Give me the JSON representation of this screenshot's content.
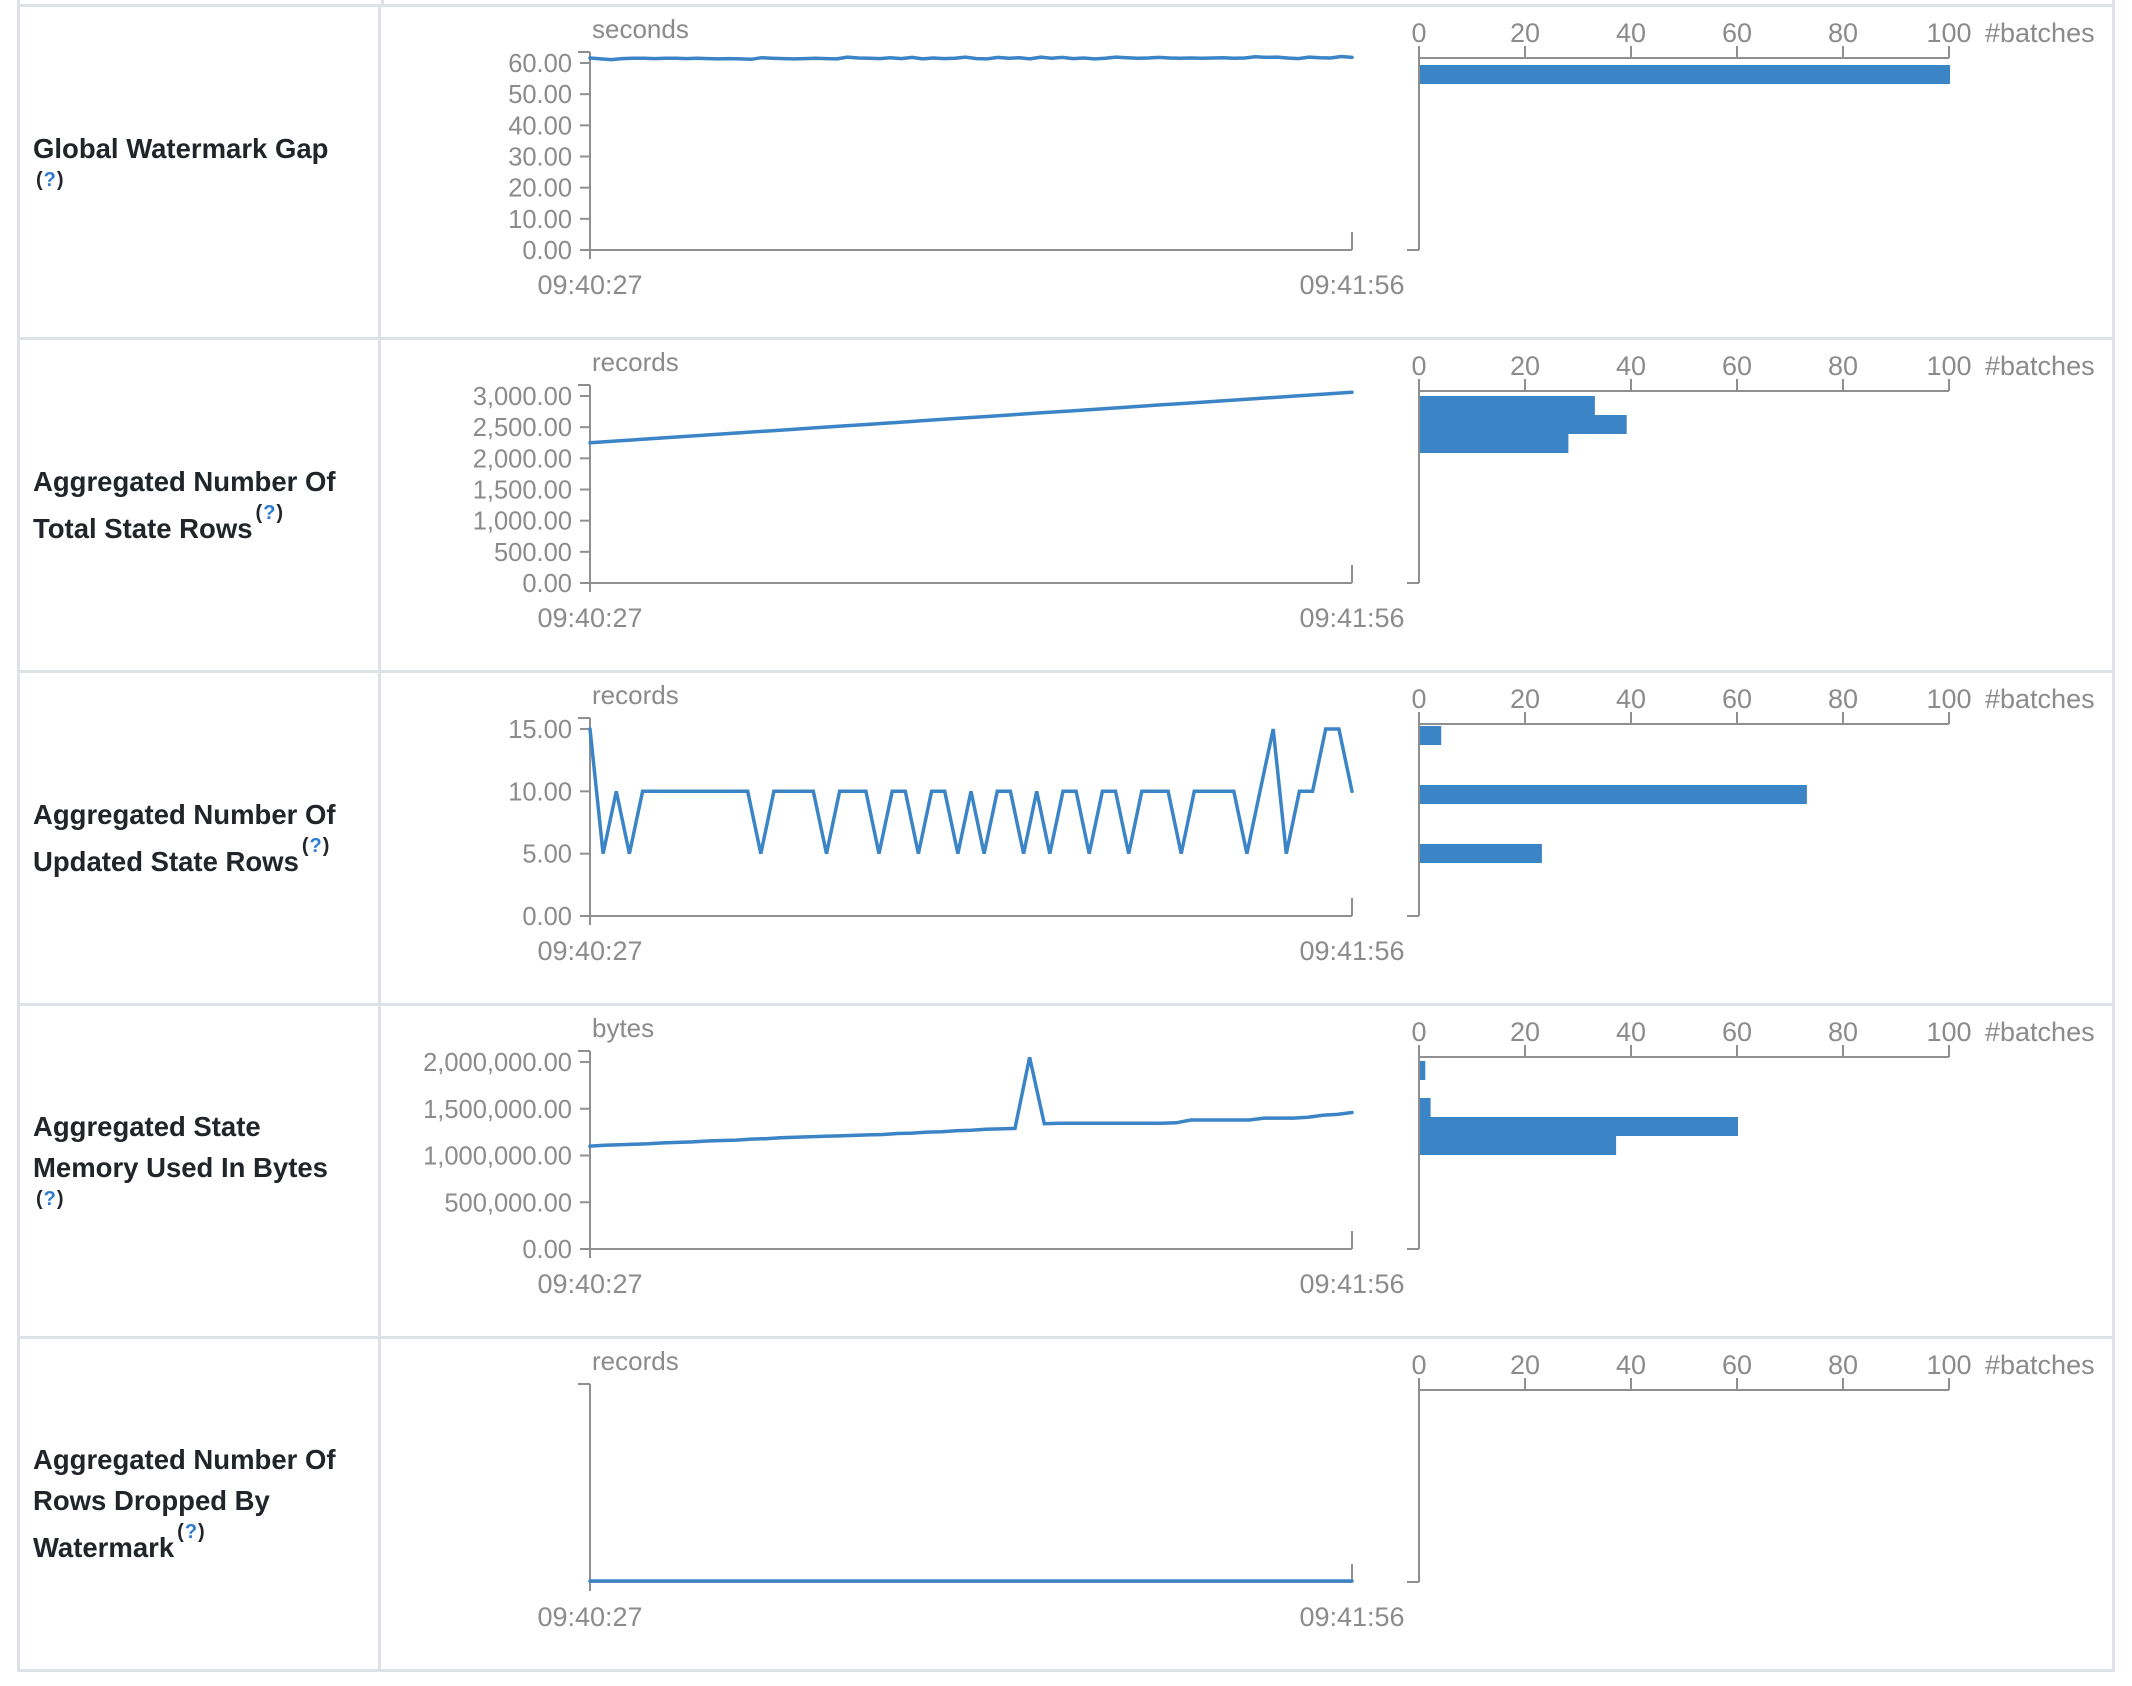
{
  "colors": {
    "accent_blue": "#3b84c6",
    "axis_gray": "#8f8f8f",
    "text_gray": "#8b8b8b",
    "label_dark": "#212529",
    "help_blue": "#2b7bd4",
    "border_gray": "#dee2e6",
    "background": "#ffffff"
  },
  "shared_axes": {
    "time_start": "09:40:27",
    "time_end": "09:41:56",
    "batches_ticks": [
      "0",
      "20",
      "40",
      "60",
      "80",
      "100"
    ],
    "batches_label": "#batches"
  },
  "chart_data": [
    {
      "metric": "Global Watermark Gap",
      "label_lines": [
        "Global Watermark Gap"
      ],
      "help_marker": "?",
      "help_own_line": true,
      "type": "line+histogram",
      "unit": "seconds",
      "x_range": [
        "09:40:27",
        "09:41:56"
      ],
      "y_ticks": [
        "60.00",
        "50.00",
        "40.00",
        "30.00",
        "20.00",
        "10.00",
        "0.00"
      ],
      "y_tick_values": [
        60,
        50,
        40,
        30,
        20,
        10,
        0
      ],
      "y_max_tick": 60,
      "timeline_values": [
        61.6,
        61.3,
        61.1,
        61.4,
        61.5,
        61.5,
        61.4,
        61.5,
        61.5,
        61.4,
        61.5,
        61.4,
        61.3,
        61.4,
        61.3,
        61.2,
        61.7,
        61.5,
        61.4,
        61.3,
        61.4,
        61.5,
        61.4,
        61.3,
        61.9,
        61.6,
        61.5,
        61.4,
        61.7,
        61.4,
        61.8,
        61.3,
        61.6,
        61.4,
        61.5,
        61.9,
        61.4,
        61.3,
        61.8,
        61.5,
        61.7,
        61.3,
        61.9,
        61.5,
        61.8,
        61.4,
        61.6,
        61.3,
        61.5,
        61.9,
        61.7,
        61.5,
        61.6,
        61.8,
        61.6,
        61.5,
        61.6,
        61.5,
        61.6,
        61.7,
        61.5,
        61.6,
        62.0,
        61.8,
        61.9,
        61.6,
        61.4,
        61.9,
        61.7,
        61.6,
        62.1,
        61.8
      ],
      "histogram_bars": [
        {
          "batches": 100,
          "bin_top": 7
        }
      ]
    },
    {
      "metric": "Aggregated Number Of Total State Rows",
      "label_lines": [
        "Aggregated Number Of",
        "Total State Rows"
      ],
      "help_marker": "?",
      "help_own_line": false,
      "type": "line+histogram",
      "unit": "records",
      "x_range": [
        "09:40:27",
        "09:41:56"
      ],
      "y_ticks": [
        "3,000.00",
        "2,500.00",
        "2,000.00",
        "1,500.00",
        "1,000.00",
        "500.00",
        "0.00"
      ],
      "y_tick_values": [
        3000,
        2500,
        2000,
        1500,
        1000,
        500,
        0
      ],
      "y_max_tick": 3000,
      "timeline_values": [
        2250,
        2280,
        2310,
        2340,
        2370,
        2400,
        2430,
        2460,
        2490,
        2520,
        2550,
        2580,
        2610,
        2640,
        2670,
        2700,
        2730,
        2760,
        2790,
        2820,
        2850,
        2880,
        2910,
        2940,
        2970,
        3000,
        3030,
        3060
      ],
      "histogram_bars": [
        {
          "batches": 33,
          "bin_top": 5
        },
        {
          "batches": 39,
          "bin_top": 24
        },
        {
          "batches": 28,
          "bin_top": 43
        }
      ]
    },
    {
      "metric": "Aggregated Number Of Updated State Rows",
      "label_lines": [
        "Aggregated Number Of",
        "Updated State Rows"
      ],
      "help_marker": "?",
      "help_own_line": false,
      "type": "line+histogram",
      "unit": "records",
      "x_range": [
        "09:40:27",
        "09:41:56"
      ],
      "y_ticks": [
        "15.00",
        "10.00",
        "5.00",
        "0.00"
      ],
      "y_tick_values": [
        15,
        10,
        5,
        0
      ],
      "y_max_tick": 15,
      "timeline_values": [
        15,
        5,
        10,
        5,
        10,
        10,
        10,
        10,
        10,
        10,
        10,
        10,
        10,
        5,
        10,
        10,
        10,
        10,
        5,
        10,
        10,
        10,
        5,
        10,
        10,
        5,
        10,
        10,
        5,
        10,
        5,
        10,
        10,
        5,
        10,
        5,
        10,
        10,
        5,
        10,
        10,
        5,
        10,
        10,
        10,
        5,
        10,
        10,
        10,
        10,
        5,
        10,
        15,
        5,
        10,
        10,
        15,
        15,
        10
      ],
      "histogram_bars": [
        {
          "batches": 4,
          "bin_top": 2
        },
        {
          "batches": 73,
          "bin_top": 61
        },
        {
          "batches": 23,
          "bin_top": 120
        }
      ]
    },
    {
      "metric": "Aggregated State Memory Used In Bytes",
      "label_lines": [
        "Aggregated State",
        "Memory Used In Bytes"
      ],
      "help_marker": "?",
      "help_own_line": true,
      "type": "line+histogram",
      "unit": "bytes",
      "x_range": [
        "09:40:27",
        "09:41:56"
      ],
      "y_ticks": [
        "2,000,000.00",
        "1,500,000.00",
        "1,000,000.00",
        "500,000.00",
        "0.00"
      ],
      "y_tick_values": [
        2000000,
        1500000,
        1000000,
        500000,
        0
      ],
      "y_max_tick": 2000000,
      "timeline_values": [
        1100000,
        1110000,
        1115000,
        1120000,
        1125000,
        1135000,
        1140000,
        1145000,
        1155000,
        1160000,
        1165000,
        1175000,
        1180000,
        1190000,
        1195000,
        1200000,
        1205000,
        1210000,
        1215000,
        1220000,
        1225000,
        1235000,
        1240000,
        1250000,
        1255000,
        1265000,
        1270000,
        1280000,
        1285000,
        1290000,
        2050000,
        1340000,
        1345000,
        1345000,
        1345000,
        1345000,
        1345000,
        1345000,
        1345000,
        1345000,
        1350000,
        1380000,
        1380000,
        1380000,
        1380000,
        1380000,
        1400000,
        1400000,
        1400000,
        1410000,
        1430000,
        1440000,
        1460000
      ],
      "histogram_bars": [
        {
          "batches": 1,
          "bin_top": 4
        },
        {
          "batches": 2,
          "bin_top": 41
        },
        {
          "batches": 60,
          "bin_top": 60
        },
        {
          "batches": 37,
          "bin_top": 79
        }
      ]
    },
    {
      "metric": "Aggregated Number Of Rows Dropped By Watermark",
      "label_lines": [
        "Aggregated Number Of",
        "Rows Dropped By",
        "Watermark"
      ],
      "help_marker": "?",
      "help_own_line": false,
      "type": "line+histogram",
      "unit": "records",
      "x_range": [
        "09:40:27",
        "09:41:56"
      ],
      "y_ticks": [],
      "y_tick_values": [],
      "y_max_tick": null,
      "timeline_values": [
        0,
        0
      ],
      "histogram_bars": []
    }
  ]
}
